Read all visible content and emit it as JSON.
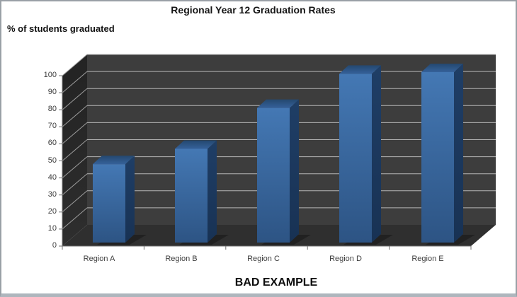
{
  "window": {
    "background": "#ffffff",
    "border_color": "#9aa0a6",
    "border_bottom_color": "#aeb6bd"
  },
  "chart_data": {
    "type": "bar",
    "style": "3d-column",
    "title": "Regional Year 12 Graduation Rates",
    "ylabel": "% of students graduated",
    "xlabel": "",
    "caption": "BAD EXAMPLE",
    "categories": [
      "Region A",
      "Region B",
      "Region C",
      "Region D",
      "Region E"
    ],
    "values": [
      46,
      55,
      79,
      99,
      100
    ],
    "yticks": [
      0,
      10,
      20,
      30,
      40,
      50,
      60,
      70,
      80,
      90,
      100
    ],
    "ylim": [
      0,
      100
    ],
    "grid": true,
    "legend": false,
    "colors": {
      "bar_front_top": "#4478b4",
      "bar_front_bottom": "#2d5484",
      "bar_side_top": "#1f3e66",
      "bar_side_bottom": "#183254",
      "bar_top_back": "#24486f",
      "bar_top_front": "#35619a",
      "wall_back": "#3d3d3d",
      "wall_left": "#292929",
      "floor": "#2f2f2f",
      "gridline_back": "#b5b5b5",
      "gridline_left": "#9e9e9e",
      "axis": "#707070",
      "title_text": "#151515",
      "tick_text": "#3d3d3d"
    }
  }
}
